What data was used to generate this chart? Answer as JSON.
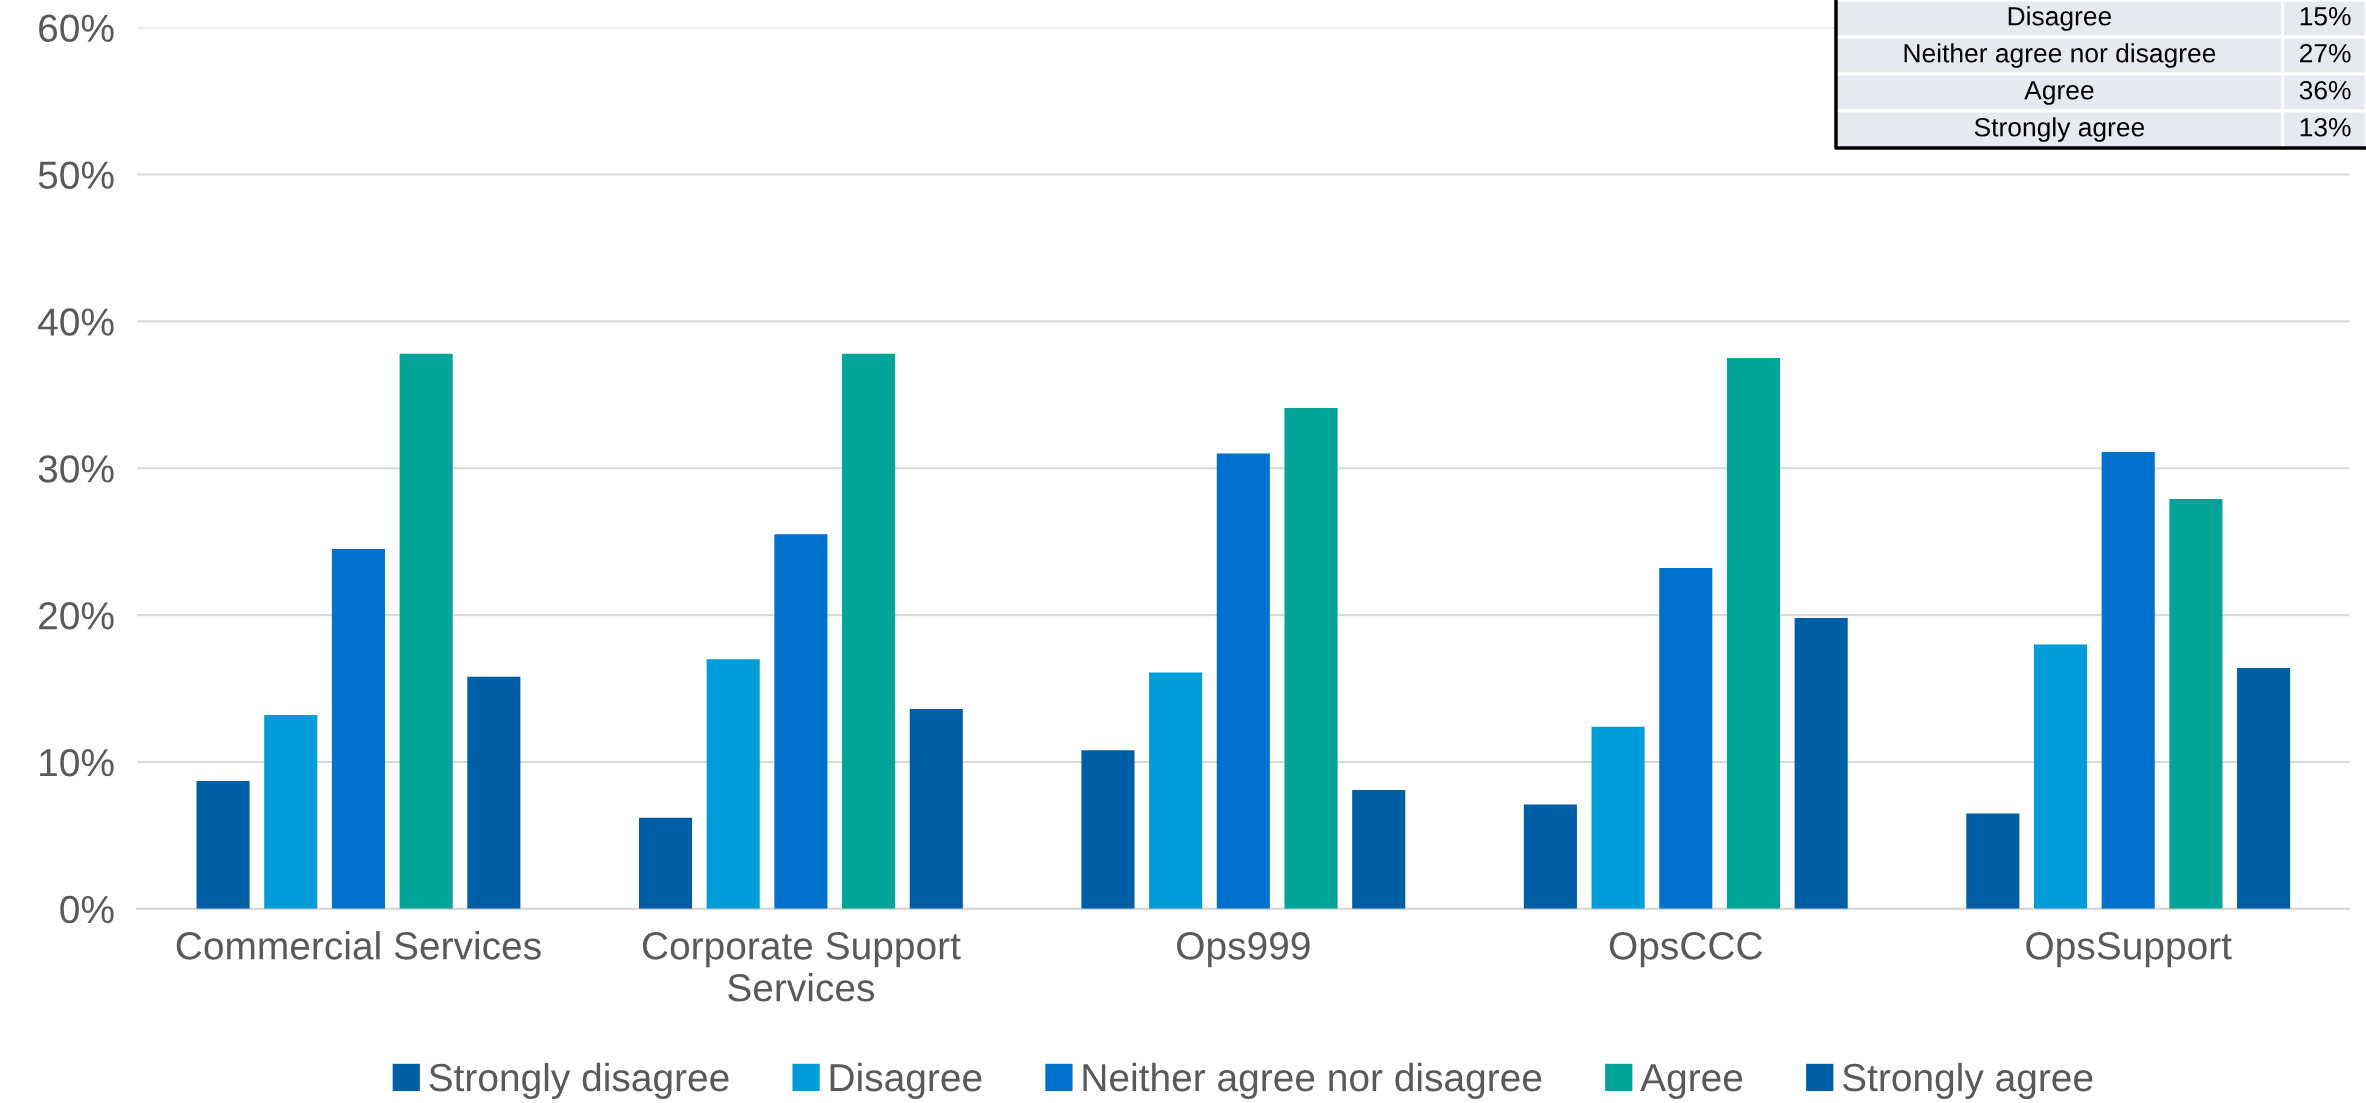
{
  "chart_data": {
    "type": "bar",
    "categories": [
      "Commercial Services",
      "Corporate Support\nServices",
      "Ops999",
      "OpsCCC",
      "OpsSupport"
    ],
    "series": [
      {
        "name": "Strongly disagree",
        "color": "#005ea5",
        "values": [
          8.7,
          6.2,
          10.8,
          7.1,
          6.5
        ]
      },
      {
        "name": "Disagree",
        "color": "#009cda",
        "values": [
          13.2,
          17.0,
          16.1,
          12.4,
          18.0
        ]
      },
      {
        "name": "Neither agree nor disagree",
        "color": "#0072ce",
        "values": [
          24.5,
          25.5,
          31.0,
          23.2,
          31.1
        ]
      },
      {
        "name": "Agree",
        "color": "#00a499",
        "values": [
          37.8,
          37.8,
          34.1,
          37.5,
          27.9
        ]
      },
      {
        "name": "Strongly agree",
        "color": "#005ea5",
        "values": [
          15.8,
          13.6,
          8.1,
          19.8,
          16.4
        ]
      }
    ],
    "ylim": [
      0,
      60
    ],
    "yticks": [
      {
        "value": 0,
        "label": "0%"
      },
      {
        "value": 10,
        "label": "10%"
      },
      {
        "value": 20,
        "label": "20%"
      },
      {
        "value": 30,
        "label": "30%"
      },
      {
        "value": 40,
        "label": "40%"
      },
      {
        "value": 50,
        "label": "50%"
      },
      {
        "value": 60,
        "label": "60%"
      }
    ],
    "grid": "y",
    "legend": "bottom",
    "annotations": [
      "Disagree",
      "15%",
      "Neither agree nor disagree",
      "27%",
      "Agree",
      "36%",
      "Strongly agree",
      "13%"
    ]
  }
}
